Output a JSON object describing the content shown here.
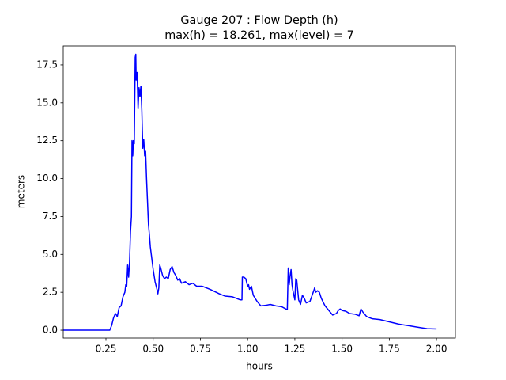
{
  "chart_data": {
    "type": "line",
    "title": "Gauge 207 : Flow Depth (h)",
    "subtitle": "max(h) =  18.261,    max(level) = 7",
    "xlabel": "hours",
    "ylabel": "meters",
    "xlim": [
      0.024,
      2.1
    ],
    "ylim": [
      -0.52,
      18.75
    ],
    "xticks": [
      {
        "value": 0.25,
        "label": "0.25"
      },
      {
        "value": 0.5,
        "label": "0.50"
      },
      {
        "value": 0.75,
        "label": "0.75"
      },
      {
        "value": 1,
        "label": "1.00"
      },
      {
        "value": 1.25,
        "label": "1.25"
      },
      {
        "value": 1.5,
        "label": "1.50"
      },
      {
        "value": 1.75,
        "label": "1.75"
      },
      {
        "value": 2,
        "label": "2.00"
      }
    ],
    "yticks": [
      {
        "value": 0,
        "label": "0.0"
      },
      {
        "value": 2.5,
        "label": "2.5"
      },
      {
        "value": 5,
        "label": "5.0"
      },
      {
        "value": 7.5,
        "label": "7.5"
      },
      {
        "value": 10,
        "label": "10.0"
      },
      {
        "value": 12.5,
        "label": "12.5"
      },
      {
        "value": 15,
        "label": "15.0"
      },
      {
        "value": 17.5,
        "label": "17.5"
      }
    ],
    "x": [
      0.024,
      0.27,
      0.28,
      0.29,
      0.3,
      0.31,
      0.32,
      0.33,
      0.34,
      0.35,
      0.355,
      0.36,
      0.365,
      0.37,
      0.375,
      0.38,
      0.385,
      0.388,
      0.392,
      0.395,
      0.4,
      0.405,
      0.408,
      0.41,
      0.415,
      0.42,
      0.425,
      0.43,
      0.435,
      0.44,
      0.445,
      0.45,
      0.455,
      0.46,
      0.465,
      0.47,
      0.475,
      0.48,
      0.485,
      0.49,
      0.5,
      0.51,
      0.52,
      0.525,
      0.53,
      0.535,
      0.54,
      0.55,
      0.56,
      0.57,
      0.58,
      0.59,
      0.6,
      0.61,
      0.62,
      0.63,
      0.64,
      0.65,
      0.67,
      0.69,
      0.71,
      0.73,
      0.76,
      0.8,
      0.85,
      0.88,
      0.92,
      0.96,
      0.97,
      0.972,
      0.98,
      0.99,
      1.0,
      1.005,
      1.01,
      1.02,
      1.03,
      1.05,
      1.07,
      1.1,
      1.12,
      1.15,
      1.18,
      1.21,
      1.215,
      1.22,
      1.225,
      1.23,
      1.235,
      1.24,
      1.25,
      1.255,
      1.26,
      1.27,
      1.28,
      1.29,
      1.3,
      1.31,
      1.33,
      1.35,
      1.355,
      1.36,
      1.37,
      1.38,
      1.39,
      1.41,
      1.43,
      1.45,
      1.47,
      1.48,
      1.49,
      1.5,
      1.52,
      1.54,
      1.57,
      1.59,
      1.6,
      1.61,
      1.63,
      1.66,
      1.7,
      1.75,
      1.8,
      1.85,
      1.9,
      1.95,
      2.0
    ],
    "series": [
      {
        "name": "h",
        "color": "#0000ff",
        "values": [
          0,
          0,
          0.3,
          0.8,
          1.1,
          0.9,
          1.5,
          1.6,
          2.2,
          2.5,
          3.0,
          2.9,
          4.3,
          3.5,
          4.5,
          6.5,
          7.5,
          12.5,
          11.5,
          12.5,
          12.3,
          18.0,
          18.2,
          16.5,
          17.0,
          14.6,
          16.0,
          15.4,
          16.1,
          14.5,
          12.0,
          12.6,
          11.5,
          11.8,
          10.0,
          8.5,
          7.0,
          6.3,
          5.5,
          5.0,
          4.0,
          3.2,
          2.7,
          2.4,
          2.8,
          4.3,
          4.1,
          3.6,
          3.4,
          3.5,
          3.4,
          4.0,
          4.2,
          3.8,
          3.6,
          3.3,
          3.4,
          3.1,
          3.2,
          3.0,
          3.1,
          2.9,
          2.9,
          2.7,
          2.4,
          2.25,
          2.2,
          2.0,
          2.0,
          3.5,
          3.5,
          3.4,
          2.9,
          3.0,
          2.7,
          2.9,
          2.3,
          1.9,
          1.6,
          1.65,
          1.7,
          1.6,
          1.55,
          1.35,
          4.1,
          3.0,
          3.6,
          4.0,
          3.0,
          2.6,
          2.0,
          3.4,
          3.3,
          2.0,
          1.7,
          2.3,
          2.1,
          1.8,
          1.9,
          2.6,
          2.8,
          2.5,
          2.6,
          2.5,
          2.1,
          1.6,
          1.3,
          1.0,
          1.1,
          1.3,
          1.4,
          1.3,
          1.25,
          1.1,
          1.05,
          0.95,
          1.4,
          1.2,
          0.9,
          0.75,
          0.7,
          0.55,
          0.4,
          0.3,
          0.2,
          0.1,
          0.08
        ]
      }
    ]
  }
}
